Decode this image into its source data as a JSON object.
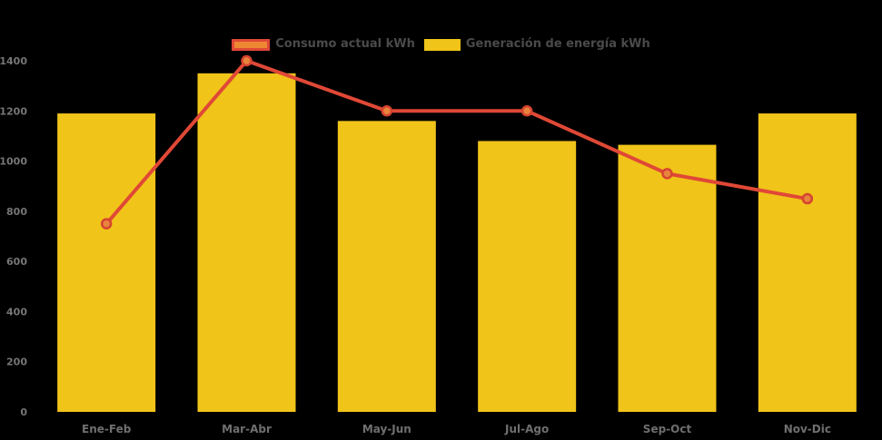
{
  "chart": {
    "colors": {
      "background": "#000000",
      "bar": "#F0C419",
      "line": "#E04836",
      "marker_fill": "#E8843C",
      "marker_stroke": "#D64430",
      "legend_line_swatch_fill": "#ED8733",
      "axis_tick_label": "#767676",
      "category_label": "#6F6F6F",
      "legend_label": "#4A4A4A"
    }
  },
  "chart_data": {
    "type": "bar",
    "title": "",
    "xlabel": "",
    "ylabel": "",
    "categories": [
      "Ene-Feb",
      "Mar-Abr",
      "May-Jun",
      "Jul-Ago",
      "Sep-Oct",
      "Nov-Dic"
    ],
    "series": [
      {
        "name": "Consumo actual kWh",
        "type": "line",
        "color": "#E04836",
        "values": [
          750,
          1400,
          1200,
          1200,
          950,
          850
        ]
      },
      {
        "name": "Generación de energía kWh",
        "type": "bar",
        "color": "#F0C419",
        "values": [
          1190,
          1350,
          1160,
          1080,
          1065,
          1190
        ]
      }
    ],
    "ylim": [
      0,
      1400
    ],
    "yticks": [
      0,
      200,
      400,
      600,
      800,
      1000,
      1200,
      1400
    ],
    "grid": false,
    "legend_position": "top-center"
  }
}
